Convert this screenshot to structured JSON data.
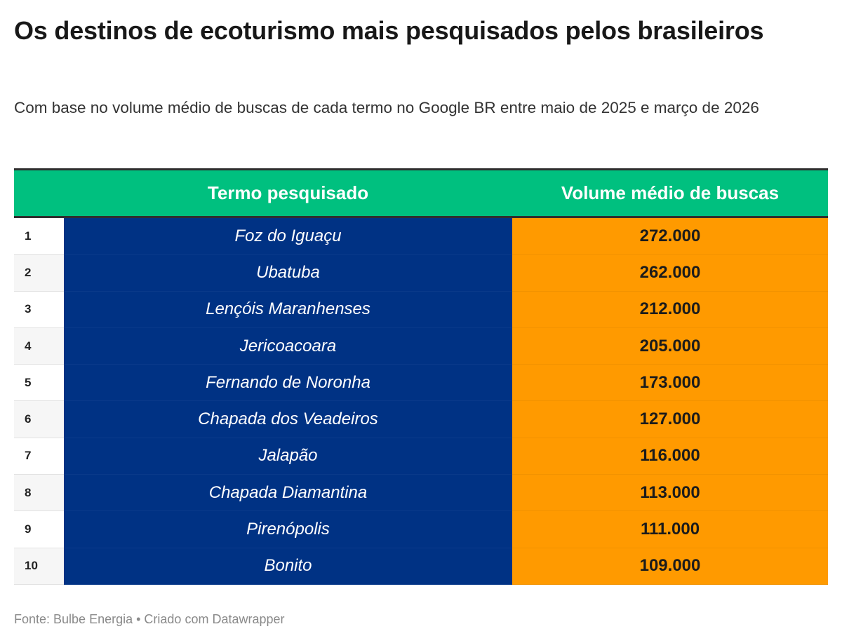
{
  "chart_data": {
    "type": "table",
    "title": "Os destinos de ecoturismo mais pesquisados pelos brasileiros",
    "subtitle": "Com base no volume médio de buscas de cada termo no Google BR entre maio de 2025 e março de 2026",
    "columns": [
      "",
      "Termo pesquisado",
      "Volume médio de buscas"
    ],
    "rows": [
      {
        "rank": "1",
        "term": "Foz do Iguaçu",
        "volume": "272.000"
      },
      {
        "rank": "2",
        "term": "Ubatuba",
        "volume": "262.000"
      },
      {
        "rank": "3",
        "term": "Lençóis Maranhenses",
        "volume": "212.000"
      },
      {
        "rank": "4",
        "term": "Jericoacoara",
        "volume": "205.000"
      },
      {
        "rank": "5",
        "term": "Fernando de Noronha",
        "volume": "173.000"
      },
      {
        "rank": "6",
        "term": "Chapada dos Veadeiros",
        "volume": "127.000"
      },
      {
        "rank": "7",
        "term": "Jalapão",
        "volume": "116.000"
      },
      {
        "rank": "8",
        "term": "Chapada Diamantina",
        "volume": "113.000"
      },
      {
        "rank": "9",
        "term": "Pirenópolis",
        "volume": "111.000"
      },
      {
        "rank": "10",
        "term": "Bonito",
        "volume": "109.000"
      }
    ],
    "colors": {
      "header": "#00c07f",
      "term_column": "#003284",
      "volume_column": "#ff9a00"
    }
  },
  "footer": "Fonte: Bulbe Energia • Criado com Datawrapper"
}
